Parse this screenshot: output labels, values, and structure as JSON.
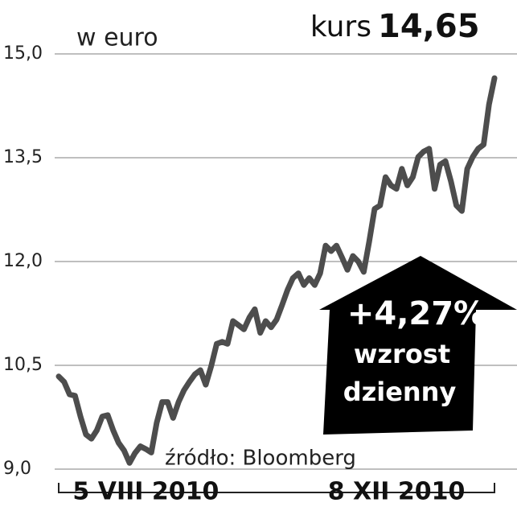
{
  "chart_data": {
    "type": "line",
    "unit_label": "w euro",
    "headline_label": "kurs",
    "headline_value": "14,65",
    "change": "+4,27%",
    "change_text_1": "wzrost",
    "change_text_2": "dzienny",
    "source": "źródło: Bloomberg",
    "color": "#4d4d4d",
    "grid": true,
    "ylim": [
      9.0,
      15.0
    ],
    "yticks": [
      {
        "value": 9.0,
        "label": "9,0"
      },
      {
        "value": 10.5,
        "label": "10,5"
      },
      {
        "value": 12.0,
        "label": "12,0"
      },
      {
        "value": 13.5,
        "label": "13,5"
      },
      {
        "value": 15.0,
        "label": "15,0"
      }
    ],
    "categories": [
      null,
      null,
      null,
      null,
      null,
      null,
      null,
      null,
      null,
      null,
      null,
      null,
      null,
      null,
      null,
      null,
      "5 VIII 2010",
      null,
      null,
      null,
      null,
      null,
      null,
      null,
      null,
      null,
      null,
      null,
      null,
      null,
      null,
      null,
      null,
      null,
      null,
      null,
      null,
      null,
      null,
      null,
      null,
      null,
      null,
      null,
      null,
      null,
      null,
      null,
      null,
      null,
      null,
      null,
      null,
      null,
      null,
      null,
      null,
      null,
      null,
      null,
      null,
      null,
      "8 XII 2010",
      null,
      null,
      null,
      null,
      null,
      null,
      null,
      null,
      null,
      null,
      null,
      null,
      null,
      null,
      null,
      null,
      null,
      null
    ],
    "values": [
      10.34,
      10.26,
      10.08,
      10.06,
      9.76,
      9.5,
      9.44,
      9.56,
      9.76,
      9.78,
      9.56,
      9.38,
      9.27,
      9.09,
      9.23,
      9.33,
      9.29,
      9.24,
      9.67,
      9.97,
      9.97,
      9.74,
      9.97,
      10.14,
      10.26,
      10.37,
      10.43,
      10.22,
      10.49,
      10.81,
      10.84,
      10.81,
      11.14,
      11.08,
      11.02,
      11.19,
      11.31,
      10.97,
      11.14,
      11.05,
      11.16,
      11.37,
      11.59,
      11.76,
      11.83,
      11.66,
      11.76,
      11.66,
      11.83,
      12.23,
      12.15,
      12.23,
      12.06,
      11.88,
      12.08,
      12.0,
      11.85,
      12.29,
      12.76,
      12.81,
      13.22,
      13.1,
      13.05,
      13.34,
      13.1,
      13.22,
      13.51,
      13.59,
      13.63,
      13.05,
      13.4,
      13.45,
      13.16,
      12.81,
      12.73,
      13.34,
      13.51,
      13.63,
      13.69,
      14.27,
      14.65
    ]
  }
}
